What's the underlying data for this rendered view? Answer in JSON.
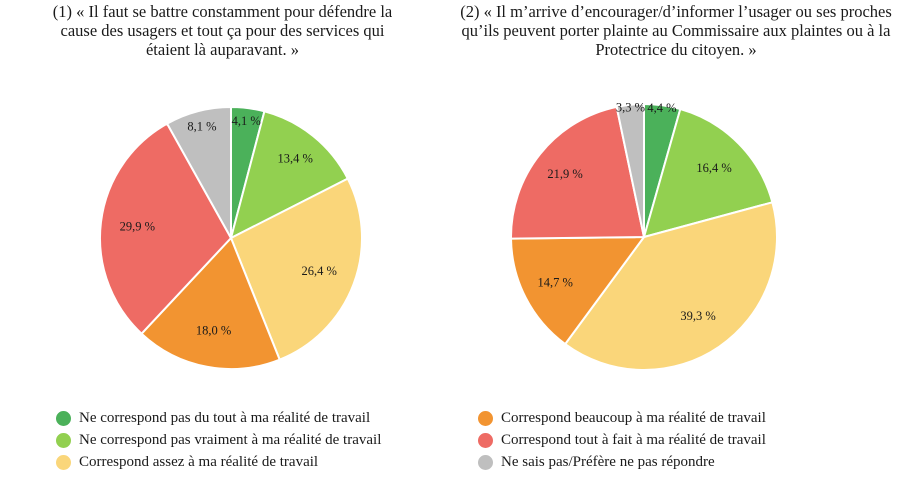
{
  "chart_data": [
    {
      "type": "pie",
      "title": "(1) « Il faut se battre constamment pour défendre la\ncause des usagers et tout ça pour des services qui\nétaient là auparavant. »",
      "categories": [
        "Ne correspond pas du tout à ma réalité de travail",
        "Ne correspond pas vraiment à ma réalité de travail",
        "Correspond assez à ma réalité de travail",
        "Correspond beaucoup à ma réalité de travail",
        "Correspond tout à fait à ma réalité de travail",
        "Ne sais pas/Préfère ne pas répondre"
      ],
      "values": [
        4.1,
        13.4,
        26.4,
        18.0,
        29.9,
        8.1
      ],
      "labels": [
        "4,1 %",
        "13,4 %",
        "26,4 %",
        "18,0 %",
        "29,9 %",
        "8,1 %"
      ]
    },
    {
      "type": "pie",
      "title": "(2) « Il m’arrive d’encourager/d’informer l’usager ou ses proches\nqu’ils peuvent porter plainte au Commissaire aux plaintes ou à la\nProtectrice du citoyen. »",
      "categories": [
        "Ne correspond pas du tout à ma réalité de travail",
        "Ne correspond pas vraiment à ma réalité de travail",
        "Correspond assez à ma réalité de travail",
        "Correspond beaucoup à ma réalité de travail",
        "Correspond tout à fait à ma réalité de travail",
        "Ne sais pas/Préfère ne pas répondre"
      ],
      "values": [
        4.4,
        16.4,
        39.3,
        14.7,
        21.9,
        3.3
      ],
      "labels": [
        "4,4 %",
        "16,4 %",
        "39,3 %",
        "14,7 %",
        "21,9 %",
        "3,3 %"
      ]
    }
  ],
  "colors": [
    "#4bb15a",
    "#92d050",
    "#fad67a",
    "#f29431",
    "#ee6b64",
    "#bfbfbf"
  ],
  "legend": {
    "left": [
      {
        "label": "Ne correspond pas du tout à ma réalité de travail",
        "color": "#4bb15a"
      },
      {
        "label": "Ne correspond pas vraiment à ma réalité de travail",
        "color": "#92d050"
      },
      {
        "label": "Correspond assez à ma réalité de travail",
        "color": "#fad67a"
      }
    ],
    "right": [
      {
        "label": "Correspond beaucoup à ma réalité de travail",
        "color": "#f29431"
      },
      {
        "label": "Correspond tout à fait à ma réalité de travail",
        "color": "#ee6b64"
      },
      {
        "label": "Ne sais pas/Préfère ne pas répondre",
        "color": "#bfbfbf"
      }
    ]
  }
}
